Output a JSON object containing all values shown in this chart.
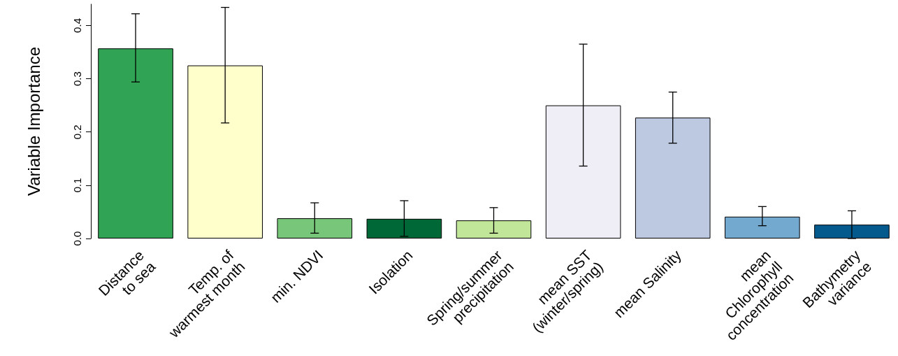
{
  "chart_data": {
    "type": "bar",
    "ylabel": "Variable Importance",
    "categories": [
      "Distance\nto sea",
      "Temp. of\nwarmest month",
      "min. NDVI",
      "Isolation",
      "Spring/summer\nprecipitation",
      "mean SST\n(winter/spring)",
      "mean Salinity",
      "mean\nChlorophyll\nconcentration",
      "Bathymetry\nvariance"
    ],
    "values": [
      0.357,
      0.325,
      0.038,
      0.037,
      0.034,
      0.25,
      0.227,
      0.041,
      0.026
    ],
    "colors": [
      "#31a354",
      "#ffffcc",
      "#78c679",
      "#006837",
      "#c2e699",
      "#efedf5",
      "#bcc9e1",
      "#74a9cf",
      "#045a8d"
    ],
    "errors": [
      [
        0.294,
        0.422
      ],
      [
        0.217,
        0.434
      ],
      [
        0.01,
        0.067
      ],
      [
        0.004,
        0.071
      ],
      [
        0.01,
        0.058
      ],
      [
        0.136,
        0.365
      ],
      [
        0.179,
        0.275
      ],
      [
        0.024,
        0.06
      ],
      [
        0.0,
        0.052
      ]
    ],
    "ylim": [
      0,
      0.44
    ],
    "yticks": [
      {
        "value": 0,
        "label": "0.0"
      },
      0.1,
      0.2,
      0.3,
      0.4
    ],
    "grid": false
  }
}
